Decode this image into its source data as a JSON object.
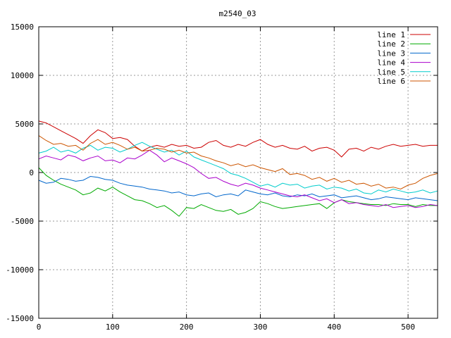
{
  "chart_data": {
    "type": "line",
    "title": "m2540_03",
    "xlabel": "",
    "ylabel": "",
    "xlim": [
      0,
      540
    ],
    "ylim": [
      -15000,
      15000
    ],
    "x_ticks": [
      0,
      100,
      200,
      300,
      400,
      500
    ],
    "y_ticks": [
      -15000,
      -10000,
      -5000,
      0,
      5000,
      10000,
      15000
    ],
    "grid": true,
    "legend_position": "top-right",
    "series": [
      {
        "name": "line 1",
        "color": "#cc0000",
        "x": [
          0,
          10,
          20,
          30,
          40,
          50,
          60,
          70,
          80,
          90,
          100,
          110,
          120,
          130,
          140,
          150,
          160,
          170,
          180,
          190,
          200,
          210,
          220,
          230,
          240,
          250,
          260,
          270,
          280,
          290,
          300,
          310,
          320,
          330,
          340,
          350,
          360,
          370,
          380,
          390,
          400,
          410,
          420,
          430,
          440,
          450,
          460,
          470,
          480,
          490,
          500,
          510,
          520,
          530,
          540
        ],
        "y": [
          5300,
          5100,
          4700,
          4300,
          3900,
          3500,
          3000,
          3800,
          4400,
          4100,
          3500,
          3600,
          3400,
          2700,
          2200,
          2600,
          2800,
          2600,
          2900,
          2700,
          2800,
          2500,
          2600,
          3100,
          3300,
          2800,
          2600,
          2900,
          2700,
          3100,
          3400,
          2900,
          2600,
          2800,
          2500,
          2400,
          2700,
          2200,
          2500,
          2600,
          2300,
          1600,
          2400,
          2500,
          2200,
          2600,
          2400,
          2700,
          2900,
          2700,
          2800,
          2900,
          2700,
          2800,
          2800
        ]
      },
      {
        "name": "line 2",
        "color": "#00aa00",
        "x": [
          0,
          10,
          20,
          30,
          40,
          50,
          60,
          70,
          80,
          90,
          100,
          110,
          120,
          130,
          140,
          150,
          160,
          170,
          180,
          190,
          200,
          210,
          220,
          230,
          240,
          250,
          260,
          270,
          280,
          290,
          300,
          310,
          320,
          330,
          340,
          350,
          360,
          370,
          380,
          390,
          400,
          410,
          420,
          430,
          440,
          450,
          460,
          470,
          480,
          490,
          500,
          510,
          520,
          530,
          540
        ],
        "y": [
          500,
          -300,
          -800,
          -1200,
          -1500,
          -1800,
          -2300,
          -2100,
          -1600,
          -1900,
          -1500,
          -2000,
          -2400,
          -2800,
          -2900,
          -3200,
          -3600,
          -3400,
          -3900,
          -4500,
          -3600,
          -3700,
          -3300,
          -3600,
          -3900,
          -4000,
          -3800,
          -4300,
          -4100,
          -3700,
          -3000,
          -3200,
          -3500,
          -3700,
          -3600,
          -3500,
          -3400,
          -3300,
          -3200,
          -3700,
          -3100,
          -2800,
          -3000,
          -3100,
          -3200,
          -3300,
          -3300,
          -3400,
          -3200,
          -3300,
          -3300,
          -3500,
          -3300,
          -3400,
          -3400
        ]
      },
      {
        "name": "line 3",
        "color": "#0066cc",
        "x": [
          0,
          10,
          20,
          30,
          40,
          50,
          60,
          70,
          80,
          90,
          100,
          110,
          120,
          130,
          140,
          150,
          160,
          170,
          180,
          190,
          200,
          210,
          220,
          230,
          240,
          250,
          260,
          270,
          280,
          290,
          300,
          310,
          320,
          330,
          340,
          350,
          360,
          370,
          380,
          390,
          400,
          410,
          420,
          430,
          440,
          450,
          460,
          470,
          480,
          490,
          500,
          510,
          520,
          530,
          540
        ],
        "y": [
          -800,
          -1100,
          -1000,
          -600,
          -700,
          -900,
          -800,
          -400,
          -500,
          -700,
          -800,
          -1100,
          -1300,
          -1400,
          -1500,
          -1700,
          -1800,
          -1900,
          -2100,
          -2000,
          -2300,
          -2400,
          -2200,
          -2100,
          -2500,
          -2300,
          -2200,
          -2400,
          -1800,
          -2000,
          -2200,
          -2300,
          -2100,
          -2400,
          -2500,
          -2300,
          -2400,
          -2200,
          -2500,
          -2400,
          -2300,
          -2600,
          -2500,
          -2400,
          -2600,
          -2800,
          -2700,
          -2500,
          -2600,
          -2700,
          -2800,
          -2600,
          -2700,
          -2800,
          -2900
        ]
      },
      {
        "name": "line 4",
        "color": "#aa00cc",
        "x": [
          0,
          10,
          20,
          30,
          40,
          50,
          60,
          70,
          80,
          90,
          100,
          110,
          120,
          130,
          140,
          150,
          160,
          170,
          180,
          190,
          200,
          210,
          220,
          230,
          240,
          250,
          260,
          270,
          280,
          290,
          300,
          310,
          320,
          330,
          340,
          350,
          360,
          370,
          380,
          390,
          400,
          410,
          420,
          430,
          440,
          450,
          460,
          470,
          480,
          490,
          500,
          510,
          520,
          530,
          540
        ],
        "y": [
          1400,
          1700,
          1500,
          1300,
          1800,
          1600,
          1200,
          1500,
          1700,
          1200,
          1300,
          1000,
          1500,
          1400,
          1800,
          2300,
          1800,
          1100,
          1500,
          1200,
          900,
          500,
          -100,
          -600,
          -500,
          -900,
          -1200,
          -1400,
          -1100,
          -1300,
          -1600,
          -1800,
          -2000,
          -2200,
          -2400,
          -2500,
          -2300,
          -2600,
          -2900,
          -2700,
          -3100,
          -2800,
          -3200,
          -3100,
          -3300,
          -3400,
          -3500,
          -3300,
          -3600,
          -3500,
          -3400,
          -3600,
          -3500,
          -3300,
          -3400
        ]
      },
      {
        "name": "line 5",
        "color": "#00cccc",
        "x": [
          0,
          10,
          20,
          30,
          40,
          50,
          60,
          70,
          80,
          90,
          100,
          110,
          120,
          130,
          140,
          150,
          160,
          170,
          180,
          190,
          200,
          210,
          220,
          230,
          240,
          250,
          260,
          270,
          280,
          290,
          300,
          310,
          320,
          330,
          340,
          350,
          360,
          370,
          380,
          390,
          400,
          410,
          420,
          430,
          440,
          450,
          460,
          470,
          480,
          490,
          500,
          510,
          520,
          530,
          540
        ],
        "y": [
          2000,
          2200,
          2600,
          2100,
          2300,
          2000,
          2500,
          2800,
          2300,
          2600,
          2500,
          2100,
          2400,
          2800,
          3100,
          2700,
          2400,
          2100,
          2300,
          1800,
          2200,
          1600,
          1300,
          1000,
          700,
          400,
          -100,
          -300,
          -600,
          -1000,
          -1400,
          -1200,
          -1500,
          -1100,
          -1300,
          -1200,
          -1600,
          -1400,
          -1300,
          -1700,
          -1500,
          -1600,
          -1900,
          -1700,
          -2100,
          -2200,
          -1800,
          -2000,
          -1700,
          -1900,
          -2100,
          -2000,
          -1800,
          -2100,
          -1900
        ]
      },
      {
        "name": "line 6",
        "color": "#cc5500",
        "x": [
          0,
          10,
          20,
          30,
          40,
          50,
          60,
          70,
          80,
          90,
          100,
          110,
          120,
          130,
          140,
          150,
          160,
          170,
          180,
          190,
          200,
          210,
          220,
          230,
          240,
          250,
          260,
          270,
          280,
          290,
          300,
          310,
          320,
          330,
          340,
          350,
          360,
          370,
          380,
          390,
          400,
          410,
          420,
          430,
          440,
          450,
          460,
          470,
          480,
          490,
          500,
          510,
          520,
          530,
          540
        ],
        "y": [
          3800,
          3300,
          2900,
          3000,
          2700,
          2800,
          2300,
          3000,
          3400,
          2900,
          3100,
          2800,
          2400,
          2600,
          2200,
          2300,
          2500,
          2400,
          2100,
          2300,
          2000,
          2100,
          1700,
          1500,
          1200,
          1000,
          700,
          900,
          600,
          800,
          500,
          300,
          100,
          400,
          -200,
          -100,
          -300,
          -700,
          -500,
          -900,
          -600,
          -1000,
          -800,
          -1200,
          -1100,
          -1400,
          -1200,
          -1600,
          -1500,
          -1700,
          -1300,
          -1100,
          -600,
          -300,
          -100
        ]
      }
    ]
  }
}
